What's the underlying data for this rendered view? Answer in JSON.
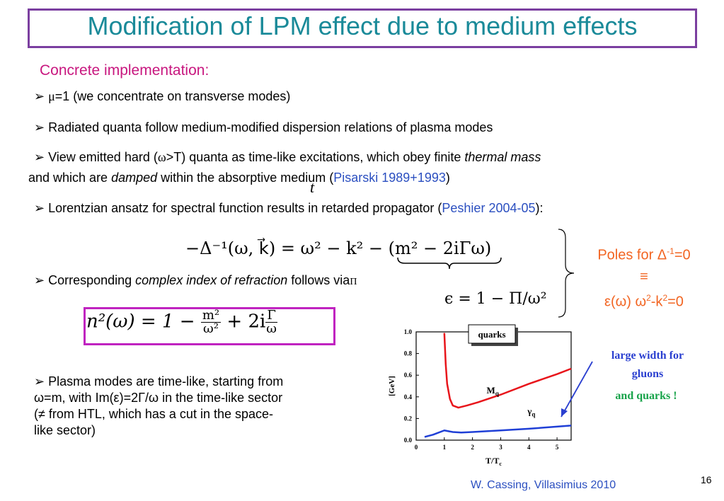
{
  "slide": {
    "title": "Modification of LPM effect due to medium effects",
    "subtitle": "Concrete implementation:",
    "page_number": "16",
    "citation": "W. Cassing, Villasimius 2010"
  },
  "bullets": {
    "b1": {
      "symbol": "μ",
      "text": "=1 (we concentrate on transverse modes)"
    },
    "b2": {
      "text": "Radiated quanta follow medium-modified dispersion relations of plasma modes"
    },
    "b3": {
      "part1": "View emitted hard (",
      "symbol": "ω",
      "part2": ">T) quanta as time-like excitations, which obey finite ",
      "em1": "thermal mass",
      "part3": "and which are ",
      "em2": "damped",
      "part4": " within the absorptive medium (",
      "ref": "Pisarski 1989+1993",
      "part5": ")"
    },
    "b4": {
      "text": "Lorentzian ansatz for spectral function results in retarded propagator (",
      "ref": "Peshier 2004-05",
      "end": "):"
    },
    "b5": {
      "text": "Corresponding ",
      "em": "complex index of refraction",
      "end": " follows via"
    }
  },
  "plasma_text": {
    "line1": "Plasma modes are time-like, starting from",
    "line2": "ω=m, with Im(ε)=2Γ/ω in the time-like sector",
    "line3": "(≠ from HTL, which has a cut in the space-",
    "line4": "like sector)"
  },
  "poles": {
    "line1": "Poles for Δ",
    "sup1": "-1",
    "line1_end": "=0",
    "equiv": "≡",
    "line3": "ε(ω) ω",
    "sup2": "2",
    "line3_mid": "-k",
    "sup3": "2",
    "line3_end": "=0"
  },
  "equations": {
    "propagator_lhs": "−Δ⁻¹(ω, k⃗) = ω² − k² − (m² − 2iΓω)",
    "epsilon": "ϵ = 1 − Π/ω²",
    "stray_t": "t",
    "stray_pi": "Π",
    "n2_lhs": "n²(ω) = 1 −",
    "n2_m": "m²",
    "n2_w": "ω²",
    "n2_mid": "+ 2i",
    "n2_G": "Γ",
    "n2_w2": "ω"
  },
  "chart_data": {
    "type": "line",
    "xlabel": "T/T",
    "xlabel_sub": "c",
    "ylabel": "[GeV]",
    "xlim": [
      0,
      5.5
    ],
    "ylim": [
      0,
      1.0
    ],
    "x_ticks": [
      "0",
      "1",
      "2",
      "3",
      "4",
      "5"
    ],
    "y_ticks": [
      "0.0",
      "0.2",
      "0.4",
      "0.6",
      "0.8",
      "1.0"
    ],
    "legend_box": "quarks",
    "annotation_line1": "large width for",
    "annotation_line2": "gluons",
    "annotation_line3": "and quarks !",
    "series": [
      {
        "name": "M",
        "sub": "q",
        "color": "#e8151b",
        "x": [
          1.0,
          1.05,
          1.1,
          1.2,
          1.3,
          1.5,
          1.8,
          2.2,
          3.0,
          4.0,
          5.0,
          5.5
        ],
        "y": [
          0.99,
          0.7,
          0.52,
          0.38,
          0.32,
          0.3,
          0.32,
          0.35,
          0.42,
          0.52,
          0.61,
          0.66
        ]
      },
      {
        "name": "γ",
        "sub": "q",
        "color": "#1f3fd6",
        "x": [
          0.3,
          0.6,
          1.0,
          1.3,
          1.6,
          2.0,
          3.0,
          4.0,
          5.0,
          5.5
        ],
        "y": [
          0.03,
          0.05,
          0.09,
          0.075,
          0.07,
          0.075,
          0.09,
          0.105,
          0.125,
          0.135
        ]
      }
    ],
    "colors": {
      "annotation_blue": "#2a3fd0",
      "annotation_green": "#18a34a"
    }
  }
}
